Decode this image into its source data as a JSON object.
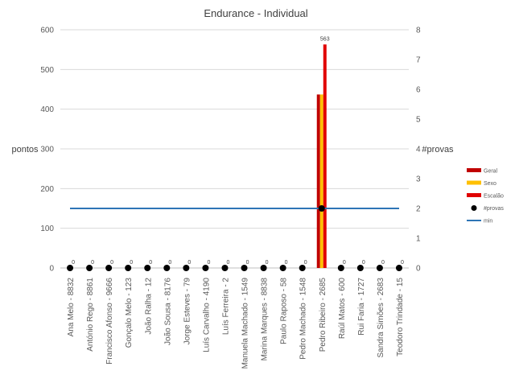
{
  "chart_data": {
    "type": "bar",
    "title": "Endurance - Individual",
    "ylabel": "pontos",
    "y2label": "#provas",
    "ylim": [
      0,
      600
    ],
    "y2lim": [
      0,
      8
    ],
    "yticks": [
      0,
      100,
      200,
      300,
      400,
      500,
      600
    ],
    "y2ticks": [
      0,
      1,
      2,
      3,
      4,
      5,
      6,
      7,
      8
    ],
    "grid": true,
    "legend_position": "right",
    "categories": [
      "Ana Melo - 8832",
      "António Rego - 8861",
      "Francisco Afonso - 9666",
      "Gonçalo Melo - 123",
      "João Ralha - 12",
      "João Sousa - 8176",
      "Jorge Esteves - 79",
      "Luís Carvalho - 4190",
      "Luís Ferreira - 2",
      "Manuela Machado - 1549",
      "Marina Marques - 8838",
      "Paulo Raposo - 58",
      "Pedro Machado - 1548",
      "Pedro Ribeiro - 2685",
      "Raúl Matos - 600",
      "Rui Faria - 1727",
      "Sandra Simões - 2683",
      "Teodoro Trindade - 15"
    ],
    "series": [
      {
        "name": "Geral",
        "type": "bar",
        "axis": "left",
        "color": "#C00000",
        "values": [
          0,
          0,
          0,
          0,
          0,
          0,
          0,
          0,
          0,
          0,
          0,
          0,
          0,
          437,
          0,
          0,
          0,
          0
        ]
      },
      {
        "name": "Sexo",
        "type": "bar",
        "axis": "left",
        "color": "#FFC000",
        "values": [
          0,
          0,
          0,
          0,
          0,
          0,
          0,
          0,
          0,
          0,
          0,
          0,
          0,
          437,
          0,
          0,
          0,
          0
        ]
      },
      {
        "name": "Escalão",
        "type": "bar",
        "axis": "left",
        "color": "#E00000",
        "values": [
          0,
          0,
          0,
          0,
          0,
          0,
          0,
          0,
          0,
          0,
          0,
          0,
          0,
          563,
          0,
          0,
          0,
          0
        ],
        "data_labels": [
          "0",
          "0",
          "0",
          "0",
          "0",
          "0",
          "0",
          "0",
          "0",
          "0",
          "0",
          "0",
          "0",
          "563",
          "0",
          "0",
          "0",
          "0"
        ]
      },
      {
        "name": "#provas",
        "type": "scatter",
        "axis": "right",
        "color": "#000000",
        "values": [
          0,
          0,
          0,
          0,
          0,
          0,
          0,
          0,
          0,
          0,
          0,
          0,
          0,
          2,
          0,
          0,
          0,
          0
        ]
      },
      {
        "name": "min",
        "type": "line",
        "axis": "right",
        "color": "#2E75B6",
        "values": [
          2,
          2,
          2,
          2,
          2,
          2,
          2,
          2,
          2,
          2,
          2,
          2,
          2,
          2,
          2,
          2,
          2,
          2
        ]
      }
    ]
  }
}
